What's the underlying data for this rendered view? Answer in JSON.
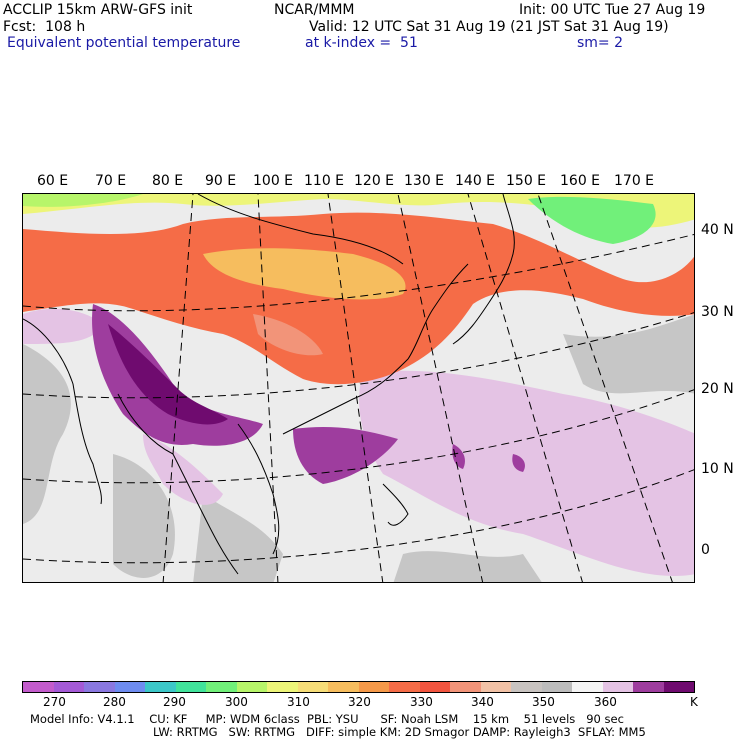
{
  "header": {
    "model": "ACCLIP 15km ARW-GFS init",
    "org": "NCAR/MMM",
    "init": "Init: 00 UTC Tue 27 Aug 19",
    "fcst": "Fcst:  108 h",
    "valid": "Valid: 12 UTC Sat 31 Aug 19 (21 JST Sat 31 Aug 19)",
    "field": "Equivalent potential temperature",
    "level": "at k-index =  51",
    "smooth": "sm= 2"
  },
  "map": {
    "lon_labels": [
      "60 E",
      "70 E",
      "80 E",
      "90 E",
      "100 E",
      "110 E",
      "120 E",
      "130 E",
      "140 E",
      "150 E",
      "160 E",
      "170 E"
    ],
    "lat_labels": [
      "40 N",
      "30 N",
      "20 N",
      "10 N",
      "0"
    ]
  },
  "colorbar": {
    "colors": [
      "#c35ccc",
      "#a45ad6",
      "#8a78e0",
      "#6e8cf0",
      "#3cc7c8",
      "#41e39b",
      "#71f07a",
      "#b7f56a",
      "#edf579",
      "#f6dd78",
      "#f6bd5e",
      "#f59949",
      "#f56c47",
      "#f2553f",
      "#f29479",
      "#f2c2a6",
      "#c8c3c0",
      "#bcbcbc",
      "#f4f4f4",
      "#e4c3e4",
      "#9e3d9e",
      "#6f0b6f"
    ],
    "labels": [
      "270",
      "280",
      "290",
      "300",
      "310",
      "320",
      "330",
      "340",
      "350",
      "360",
      "K"
    ]
  },
  "footer": {
    "line1": "Model Info: V4.1.1    CU: KF     MP: WDM 6class  PBL: YSU      SF: Noah LSM    15 km    51 levels   90 sec",
    "line2": "LW: RRTMG   SW: RRTMG   DIFF: simple KM: 2D Smagor DAMP: Rayleigh3  SFLAY: MM5"
  }
}
